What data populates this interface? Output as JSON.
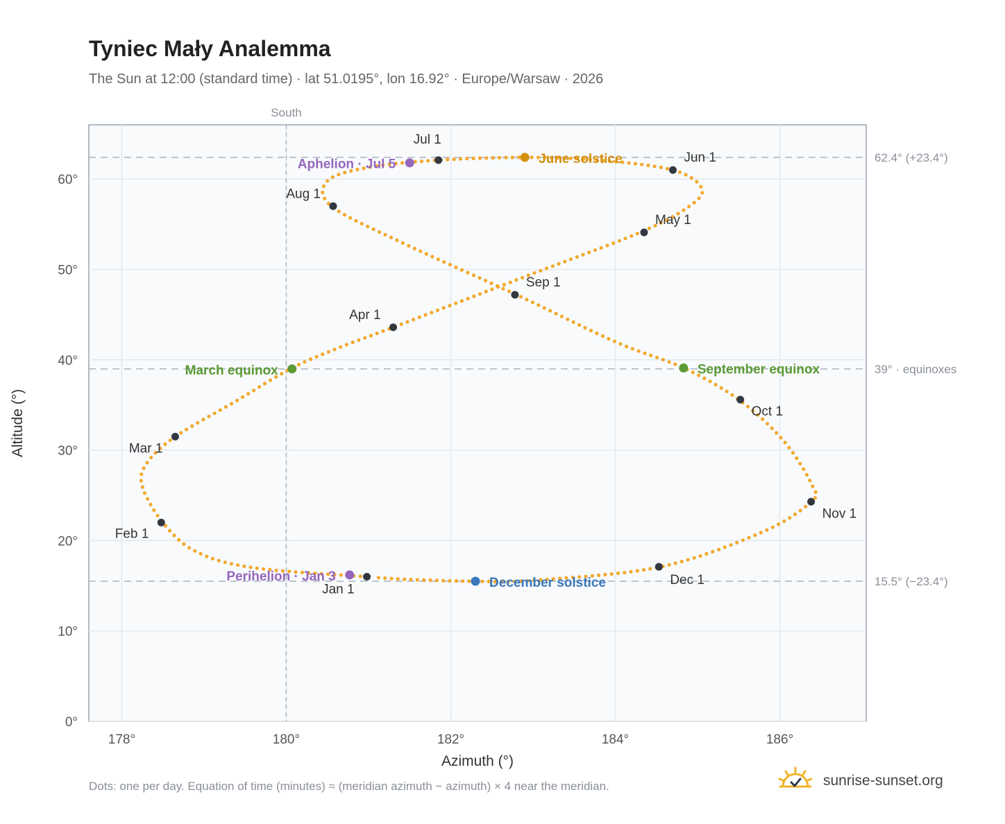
{
  "header": {
    "title": "Tyniec Mały Analemma",
    "subtitle": "The Sun at 12:00 (standard time) · lat 51.0195°, lon 16.92° · Europe/Warsaw · 2026"
  },
  "footer": {
    "note": "Dots: one per day. Equation of time (minutes) ≈ (meridian azimuth − azimuth) × 4 near the meridian.",
    "brand": "sunrise-sunset.org",
    "brand_icon": "sun-logo-icon"
  },
  "colors": {
    "path": "#f2a92c",
    "month_marker": "#333840",
    "june_solstice": "#d4900f",
    "equinox": "#5b9a34",
    "december_solstice": "#3a78bd",
    "apsis": "#9467bd",
    "guide": "#aab3bd",
    "grid": "#e3e8ee",
    "plot_bg": "#f8fafc"
  },
  "chart_data": {
    "type": "scatter",
    "xlabel": "Azimuth (°)",
    "ylabel": "Altitude (°)",
    "xlim": [
      177.6,
      187.05
    ],
    "ylim": [
      0,
      66
    ],
    "xticks": [
      178,
      180,
      182,
      184,
      186
    ],
    "xtick_labels": [
      "178°",
      "180°",
      "182°",
      "184°",
      "186°"
    ],
    "yticks": [
      0,
      10,
      20,
      30,
      40,
      50,
      60
    ],
    "ytick_labels": [
      "0°",
      "10°",
      "20°",
      "30°",
      "40°",
      "50°",
      "60°"
    ],
    "grid": true,
    "meridian": {
      "azimuth": 180,
      "label": "South"
    },
    "reference_lines": [
      {
        "altitude": 62.4,
        "label": "62.4° (+23.4°)"
      },
      {
        "altitude": 39,
        "label": "39° · equinoxes"
      },
      {
        "altitude": 15.5,
        "label": "15.5° (−23.4°)"
      }
    ],
    "series": [
      {
        "name": "daily",
        "points": [
          [
            180.98,
            16.0
          ],
          [
            179.6,
            17.0
          ],
          [
            178.9,
            18.8
          ],
          [
            178.5,
            22.0
          ],
          [
            178.25,
            26.0
          ],
          [
            178.3,
            28.5
          ],
          [
            178.65,
            31.5
          ],
          [
            179.4,
            35.5
          ],
          [
            180.05,
            39.0
          ],
          [
            180.6,
            41.2
          ],
          [
            181.3,
            43.6
          ],
          [
            182.9,
            49.2
          ],
          [
            184.3,
            54.1
          ],
          [
            184.9,
            57.0
          ],
          [
            185.05,
            59.0
          ],
          [
            184.7,
            61.0
          ],
          [
            183.8,
            62.1
          ],
          [
            182.9,
            62.4
          ],
          [
            181.85,
            62.1
          ],
          [
            181.0,
            61.3
          ],
          [
            180.5,
            59.8
          ],
          [
            180.55,
            57.0
          ],
          [
            181.4,
            53.0
          ],
          [
            182.8,
            47.2
          ],
          [
            184.0,
            42.0
          ],
          [
            184.83,
            39.1
          ],
          [
            185.5,
            35.6
          ],
          [
            186.05,
            31.0
          ],
          [
            186.4,
            26.0
          ],
          [
            186.38,
            24.3
          ],
          [
            185.8,
            21.0
          ],
          [
            184.55,
            17.1
          ],
          [
            183.0,
            15.6
          ],
          [
            182.3,
            15.5
          ],
          [
            181.5,
            15.7
          ],
          [
            180.98,
            16.0
          ]
        ]
      }
    ],
    "month_markers": [
      {
        "label": "Jan 1",
        "x": 180.98,
        "y": 16.0
      },
      {
        "label": "Feb 1",
        "x": 178.48,
        "y": 22.0
      },
      {
        "label": "Mar 1",
        "x": 178.65,
        "y": 31.5
      },
      {
        "label": "Apr 1",
        "x": 181.3,
        "y": 43.6
      },
      {
        "label": "May 1",
        "x": 184.35,
        "y": 54.1
      },
      {
        "label": "Jun 1",
        "x": 184.7,
        "y": 61.0
      },
      {
        "label": "Jul 1",
        "x": 181.85,
        "y": 62.1
      },
      {
        "label": "Aug 1",
        "x": 180.57,
        "y": 57.0
      },
      {
        "label": "Sep 1",
        "x": 182.78,
        "y": 47.2
      },
      {
        "label": "Oct 1",
        "x": 185.52,
        "y": 35.6
      },
      {
        "label": "Nov 1",
        "x": 186.38,
        "y": 24.3
      },
      {
        "label": "Dec 1",
        "x": 184.53,
        "y": 17.1
      }
    ],
    "events": [
      {
        "label": "June solstice",
        "x": 182.9,
        "y": 62.4,
        "color_key": "june_solstice"
      },
      {
        "label": "March equinox",
        "x": 180.07,
        "y": 39.0,
        "color_key": "equinox"
      },
      {
        "label": "September equinox",
        "x": 184.83,
        "y": 39.1,
        "color_key": "equinox"
      },
      {
        "label": "December solstice",
        "x": 182.3,
        "y": 15.5,
        "color_key": "december_solstice"
      },
      {
        "label": "Aphelion · Jul 5",
        "x": 181.5,
        "y": 61.8,
        "color_key": "apsis"
      },
      {
        "label": "Perihelion · Jan 3",
        "x": 180.77,
        "y": 16.2,
        "color_key": "apsis"
      }
    ]
  }
}
